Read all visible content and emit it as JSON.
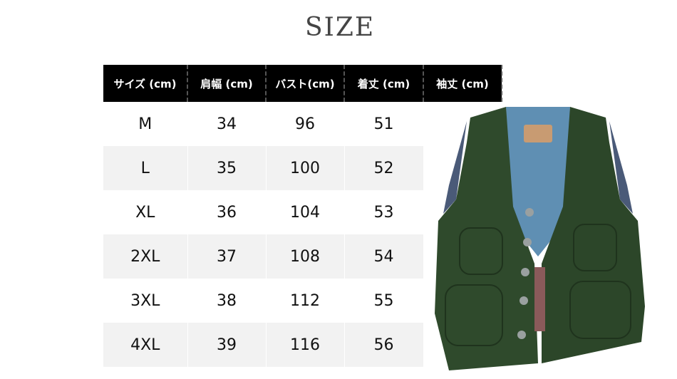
{
  "title": "SIZE",
  "headers": [
    "サイズ (cm)",
    "肩幅 (cm)",
    "バスト(cm)",
    "着丈 (cm)",
    "袖丈 (cm)"
  ],
  "rows": [
    [
      "M",
      "34",
      "96",
      "51",
      ""
    ],
    [
      "L",
      "35",
      "100",
      "52",
      ""
    ],
    [
      "XL",
      "36",
      "104",
      "53",
      ""
    ],
    [
      "2XL",
      "37",
      "108",
      "54",
      ""
    ],
    [
      "3XL",
      "38",
      "112",
      "55",
      ""
    ],
    [
      "4XL",
      "39",
      "116",
      "56",
      ""
    ]
  ],
  "colors": {
    "header_bg": "#000000",
    "alt_row": "#f2f2f2",
    "vest": "#2f4a2c",
    "lining": "#5f8fb3"
  }
}
